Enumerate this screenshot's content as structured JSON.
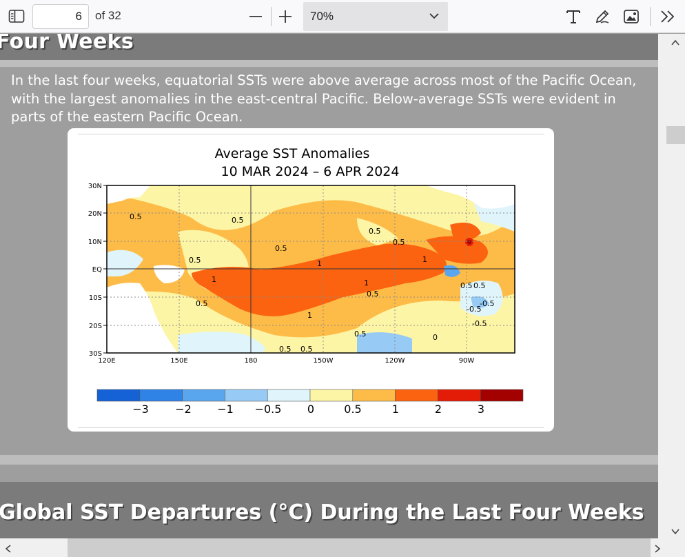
{
  "toolbar": {
    "page_number": "6",
    "page_total": "of 32",
    "zoom": "70%",
    "icons": [
      "sidebar-toggle-icon",
      "zoom-out-icon",
      "zoom-in-icon",
      "chevron-down-icon",
      "text-tool-icon",
      "draw-icon",
      "add-image-icon",
      "more-tools-icon"
    ]
  },
  "document": {
    "top_heading": "Four Weeks",
    "paragraph": "In the last four weeks, equatorial SSTs were above average across most of the Pacific Ocean, with the largest anomalies in the east-central Pacific.  Below-average SSTs were evident in parts of the eastern Pacific Ocean.",
    "bottom_heading": "Global SST Departures (°C) During the Last Four Weeks"
  },
  "map": {
    "title_line1": "Average SST Anomalies",
    "title_line2": "10 MAR 2024 – 6 APR 2024",
    "lat_labels": [
      "30N",
      "20N",
      "10N",
      "EQ",
      "10S",
      "20S",
      "30S"
    ],
    "lon_labels": [
      "120E",
      "150E",
      "180",
      "150W",
      "120W",
      "90W"
    ],
    "contour_labels": [
      "0.5",
      "0.5",
      "0.5",
      "0.5",
      "0.5",
      "0.5",
      "1",
      "1",
      "1",
      "1",
      "0.5",
      "0.5",
      "0.5",
      "1",
      "0.5",
      "0.5",
      "0.5",
      "-0.5",
      "-0.5",
      "0",
      "0.5",
      "-0.5"
    ],
    "colorbar": {
      "colors": [
        "#1561d6",
        "#2f82e6",
        "#5aa6ee",
        "#97cbf5",
        "#e0f5fb",
        "#fdf5a6",
        "#fdbc48",
        "#fb6310",
        "#e21c06",
        "#a30000"
      ],
      "tick_labels": [
        "−3",
        "−2",
        "−1",
        "−0.5",
        "0",
        "0.5",
        "1",
        "2",
        "3"
      ]
    }
  }
}
